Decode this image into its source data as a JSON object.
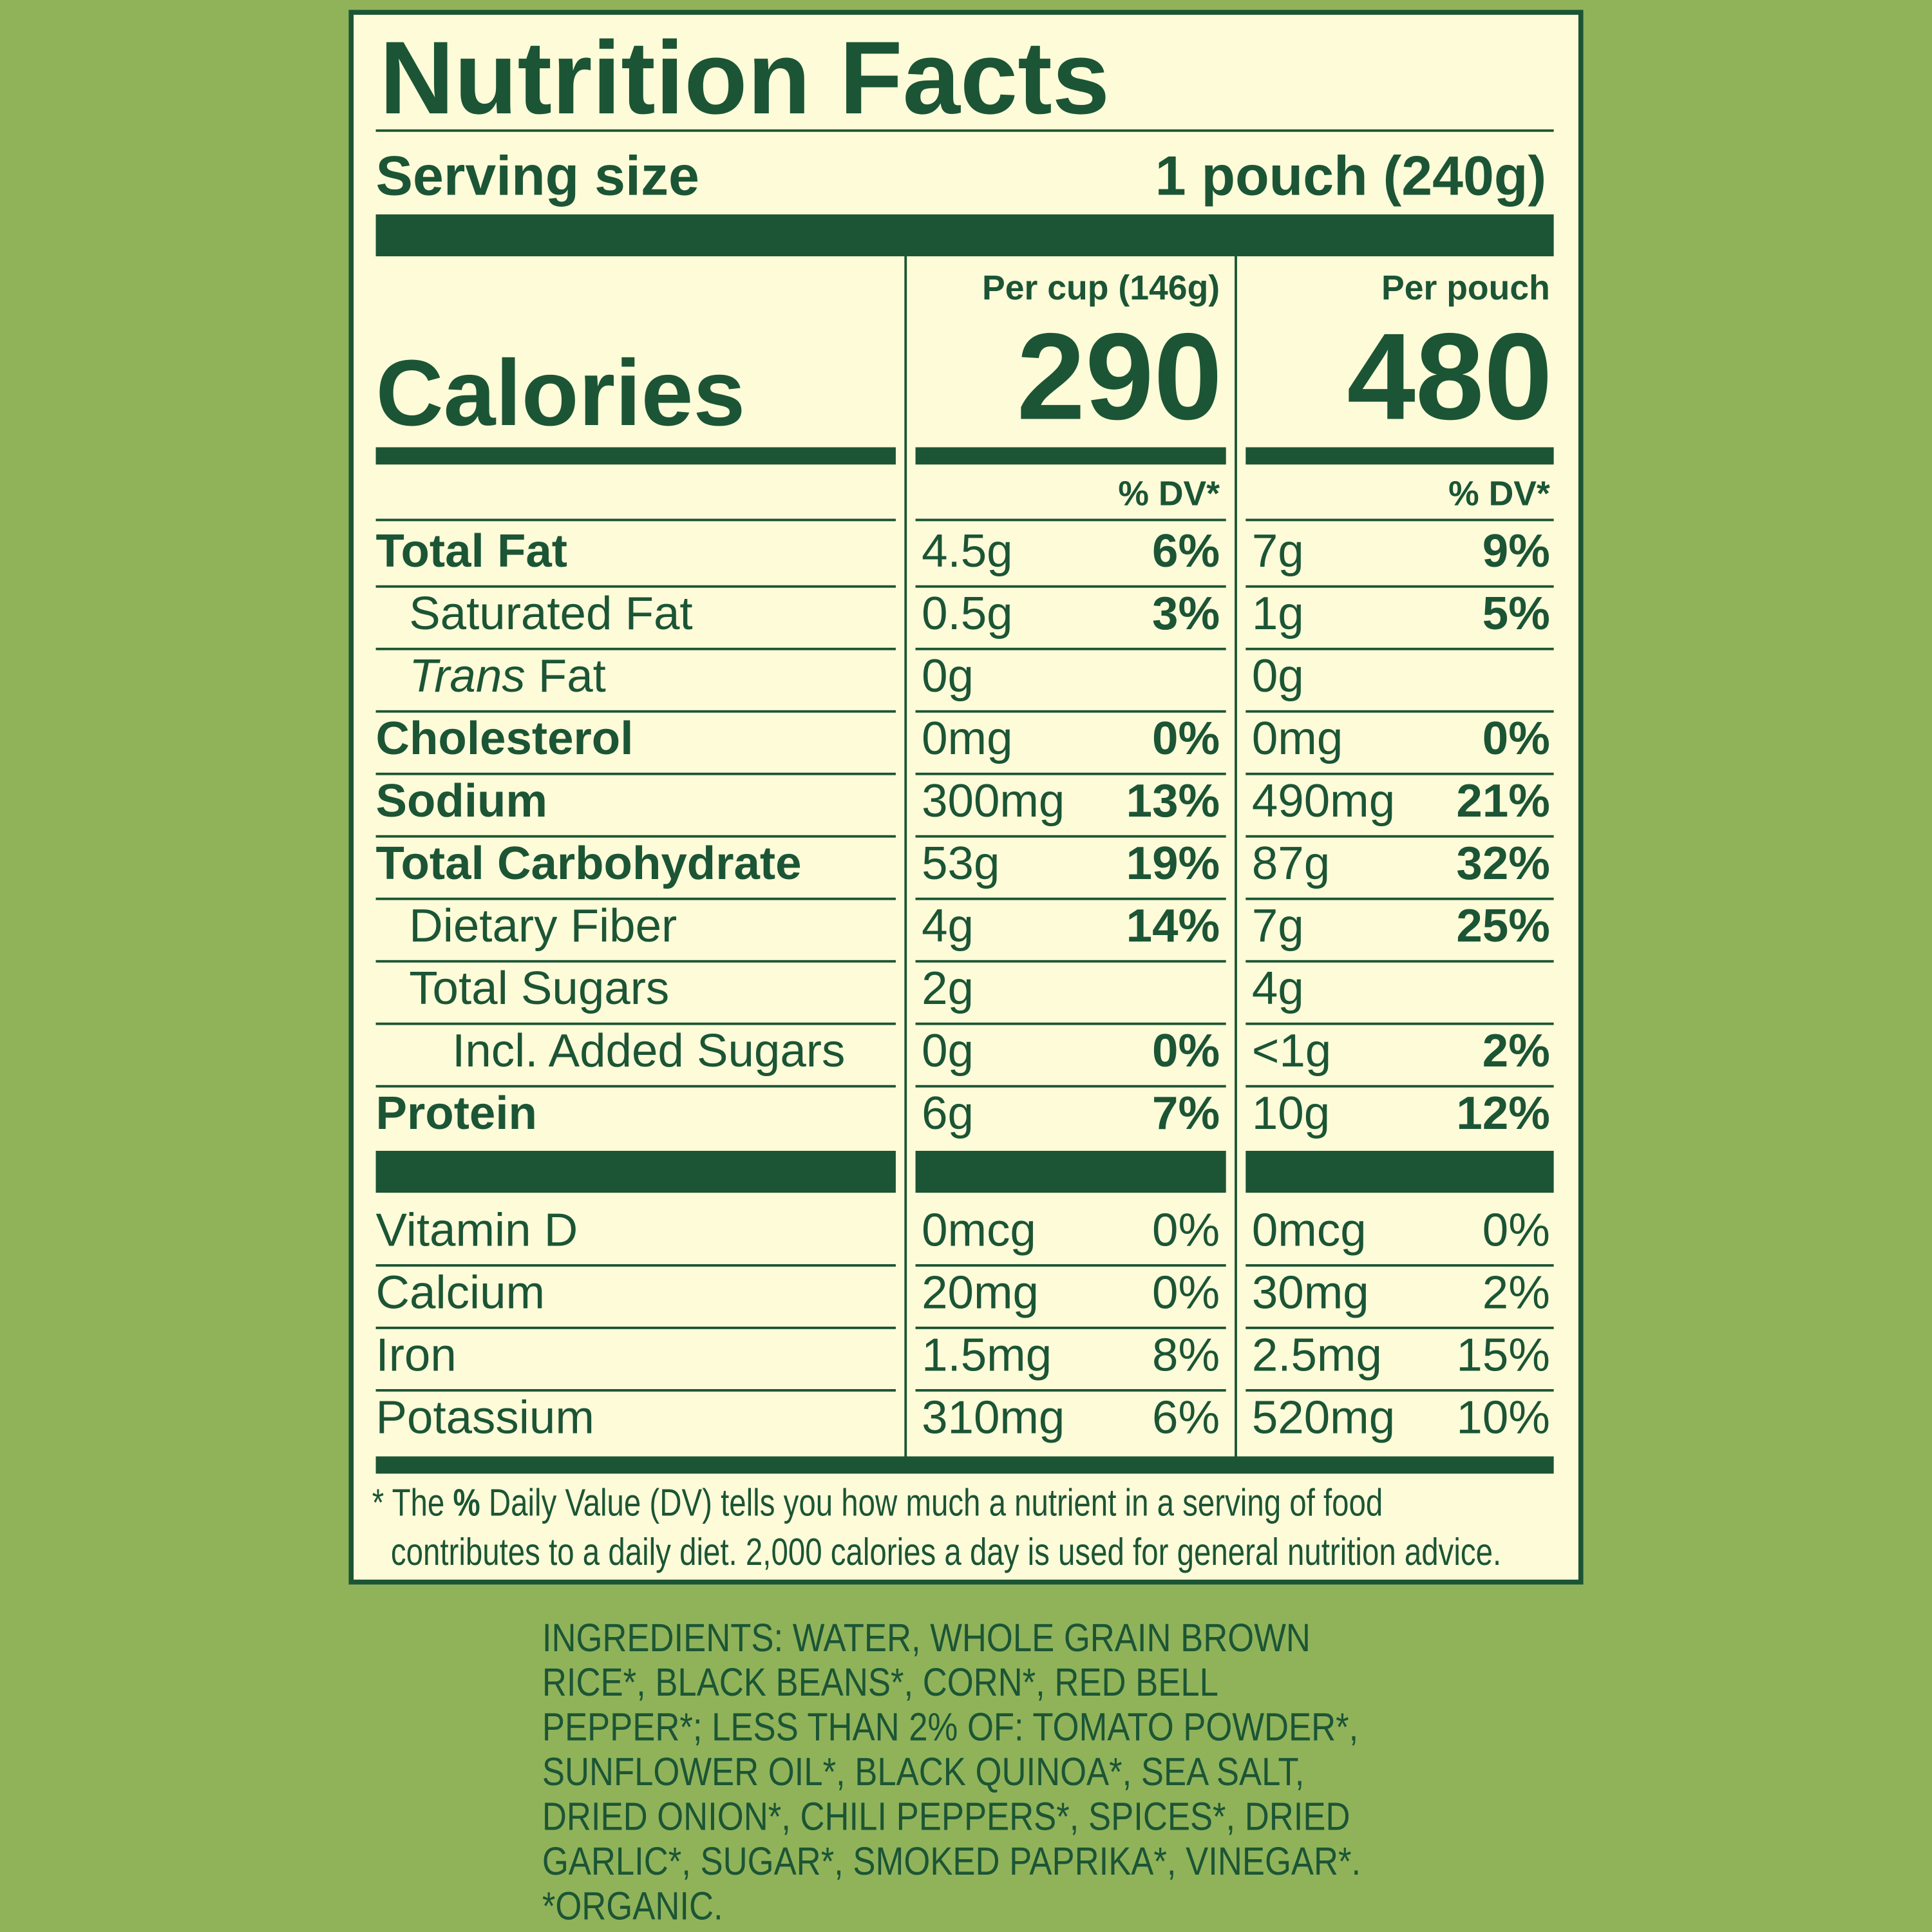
{
  "header": {
    "title": "Nutrition Facts",
    "serving_label": "Serving size",
    "serving_value": "1 pouch (240g)"
  },
  "calories": {
    "label": "Calories",
    "columns": [
      {
        "heading": "Per cup (146g)",
        "value": "290",
        "dv_heading": "% DV*"
      },
      {
        "heading": "Per pouch",
        "value": "480",
        "dv_heading": "% DV*"
      }
    ]
  },
  "nutrients": [
    {
      "name": "Total Fat",
      "bold": true,
      "indent": 0,
      "cup": [
        "4.5g",
        "6%"
      ],
      "pouch": [
        "7g",
        "9%"
      ]
    },
    {
      "name": "Saturated Fat",
      "bold": false,
      "indent": 1,
      "cup": [
        "0.5g",
        "3%"
      ],
      "pouch": [
        "1g",
        "5%"
      ]
    },
    {
      "name_italic": "Trans",
      "name": "Fat",
      "bold": false,
      "indent": 1,
      "cup": [
        "0g"
      ],
      "pouch": [
        "0g"
      ]
    },
    {
      "name": "Cholesterol",
      "bold": true,
      "indent": 0,
      "cup": [
        "0mg",
        "0%"
      ],
      "pouch": [
        "0mg",
        "0%"
      ]
    },
    {
      "name": "Sodium",
      "bold": true,
      "indent": 0,
      "cup": [
        "300mg",
        "13%"
      ],
      "pouch": [
        "490mg",
        "21%"
      ]
    },
    {
      "name": "Total Carbohydrate",
      "bold": true,
      "indent": 0,
      "cup": [
        "53g",
        "19%"
      ],
      "pouch": [
        "87g",
        "32%"
      ]
    },
    {
      "name": "Dietary Fiber",
      "bold": false,
      "indent": 1,
      "cup": [
        "4g",
        "14%"
      ],
      "pouch": [
        "7g",
        "25%"
      ]
    },
    {
      "name": "Total Sugars",
      "bold": false,
      "indent": 1,
      "cup": [
        "2g"
      ],
      "pouch": [
        "4g"
      ]
    },
    {
      "name": "Incl. Added Sugars",
      "bold": false,
      "indent": 2,
      "cup": [
        "0g",
        "0%"
      ],
      "pouch": [
        "<1g",
        "2%"
      ]
    },
    {
      "name": "Protein",
      "bold": true,
      "indent": 0,
      "cup": [
        "6g",
        "7%"
      ],
      "pouch": [
        "10g",
        "12%"
      ]
    }
  ],
  "vitamins": [
    {
      "name": "Vitamin D",
      "cup": [
        "0mcg",
        "0%"
      ],
      "pouch": [
        "0mcg",
        "0%"
      ]
    },
    {
      "name": "Calcium",
      "cup": [
        "20mg",
        "0%"
      ],
      "pouch": [
        "30mg",
        "2%"
      ]
    },
    {
      "name": "Iron",
      "cup": [
        "1.5mg",
        "8%"
      ],
      "pouch": [
        "2.5mg",
        "15%"
      ]
    },
    {
      "name": "Potassium",
      "cup": [
        "310mg",
        "6%"
      ],
      "pouch": [
        "520mg",
        "10%"
      ]
    }
  ],
  "footnote": [
    [
      "* The ",
      "%",
      " Daily Value (DV) tells you how much a nutrient in a serving of food"
    ],
    [
      "contributes to a daily diet. 2,000 calories a day is used for general nutrition advice."
    ]
  ],
  "ingredients": [
    "INGREDIENTS: WATER, WHOLE GRAIN BROWN",
    "RICE*, BLACK BEANS*, CORN*, RED BELL",
    "PEPPER*; LESS THAN 2% OF: TOMATO POWDER*,",
    "SUNFLOWER OIL*, BLACK QUINOA*, SEA SALT,",
    "DRIED ONION*, CHILI PEPPERS*, SPICES*, DRIED",
    "GARLIC*, SUGAR*, SMOKED PAPRIKA*, VINEGAR*.",
    "*ORGANIC."
  ]
}
